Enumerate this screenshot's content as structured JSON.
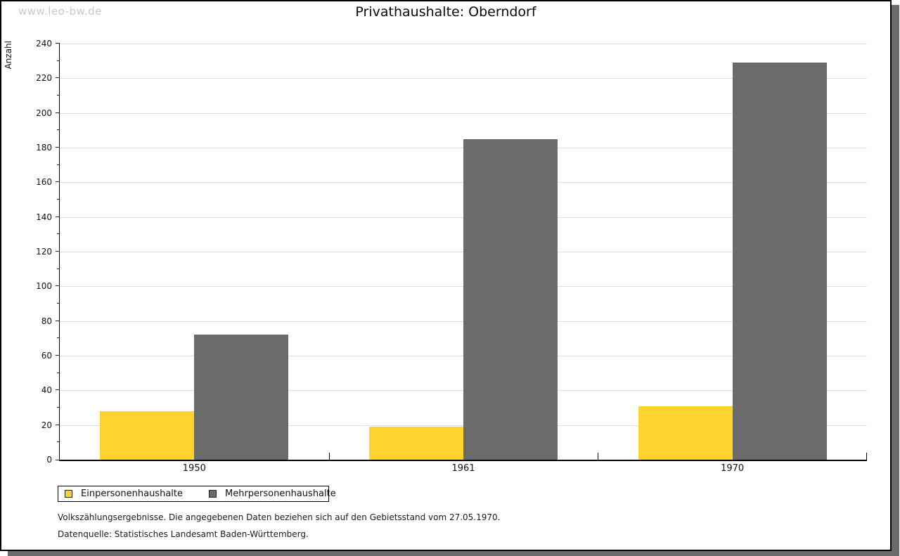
{
  "watermark": "www.leo-bw.de",
  "title": "Privathaushalte: Oberndorf",
  "chart_data": {
    "type": "bar",
    "categories": [
      "1950",
      "1961",
      "1970"
    ],
    "series": [
      {
        "name": "Einpersonenhaushalte",
        "color": "#FDD42E",
        "values": [
          28,
          19,
          31
        ]
      },
      {
        "name": "Mehrpersonenhaushalte",
        "color": "#6B6B6B",
        "values": [
          72,
          185,
          229
        ]
      }
    ],
    "title": "Privathaushalte: Oberndorf",
    "xlabel": "",
    "ylabel": "Anzahl",
    "ylim": [
      0,
      240
    ],
    "ytick_major_step": 20,
    "ytick_minor_step": 10,
    "grid": true,
    "legend_position": "bottom-left",
    "bar_colors_note": "yellow = Einpersonenhaushalte, gray = Mehrpersonenhaushalte"
  },
  "legend": {
    "item1": "Einpersonenhaushalte",
    "item2": "Mehrpersonenhaushalte"
  },
  "footer": {
    "line1": "Volkszählungsergebnisse. Die angegebenen Daten beziehen sich auf den Gebietsstand vom 27.05.1970.",
    "line2": "Datenquelle: Statistisches Landesamt Baden-Württemberg."
  }
}
